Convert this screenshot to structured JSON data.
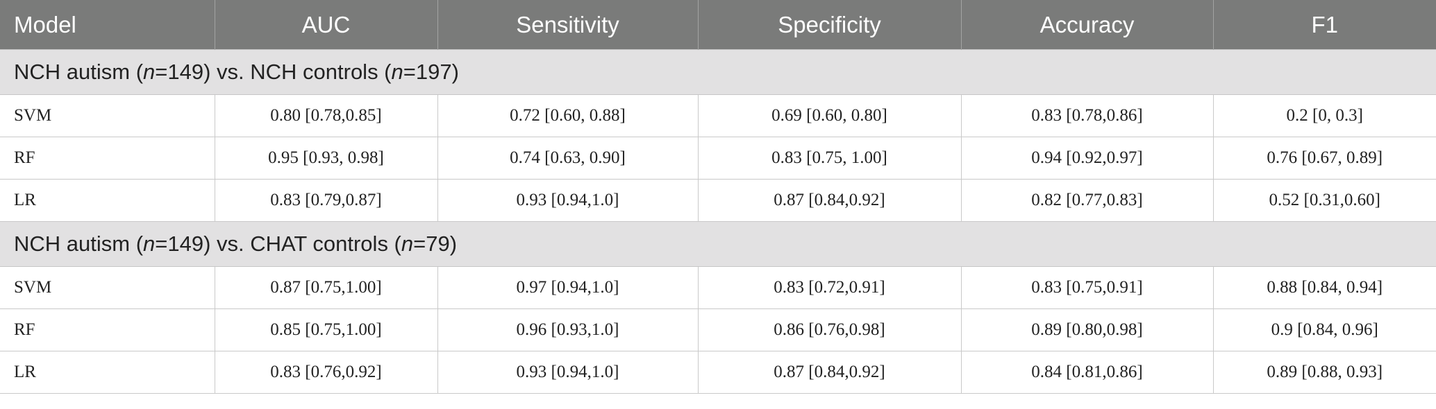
{
  "header": [
    "Model",
    "AUC",
    "Sensitivity",
    "Specificity",
    "Accuracy",
    "F1"
  ],
  "groups": [
    {
      "label_pre": "NCH autism (",
      "n1": "n",
      "label_mid": "=149) vs. NCH controls (",
      "n2": "n",
      "label_post": "=197)",
      "rows": [
        [
          "SVM",
          "0.80 [0.78,0.85]",
          "0.72 [0.60, 0.88]",
          "0.69 [0.60, 0.80]",
          "0.83 [0.78,0.86]",
          "0.2 [0, 0.3]"
        ],
        [
          "RF",
          "0.95 [0.93, 0.98]",
          "0.74 [0.63, 0.90]",
          "0.83 [0.75, 1.00]",
          "0.94 [0.92,0.97]",
          "0.76 [0.67, 0.89]"
        ],
        [
          "LR",
          "0.83 [0.79,0.87]",
          "0.93 [0.94,1.0]",
          "0.87 [0.84,0.92]",
          "0.82 [0.77,0.83]",
          "0.52 [0.31,0.60]"
        ]
      ]
    },
    {
      "label_pre": "NCH autism (",
      "n1": "n",
      "label_mid": "=149) vs. CHAT controls (",
      "n2": "n",
      "label_post": "=79)",
      "rows": [
        [
          "SVM",
          "0.87 [0.75,1.00]",
          "0.97 [0.94,1.0]",
          "0.83 [0.72,0.91]",
          "0.83 [0.75,0.91]",
          "0.88 [0.84, 0.94]"
        ],
        [
          "RF",
          "0.85 [0.75,1.00]",
          "0.96 [0.93,1.0]",
          "0.86 [0.76,0.98]",
          "0.89 [0.80,0.98]",
          "0.9 [0.84, 0.96]"
        ],
        [
          "LR",
          "0.83 [0.76,0.92]",
          "0.93 [0.94,1.0]",
          "0.87 [0.84,0.92]",
          "0.84 [0.81,0.86]",
          "0.89 [0.88, 0.93]"
        ]
      ]
    }
  ]
}
